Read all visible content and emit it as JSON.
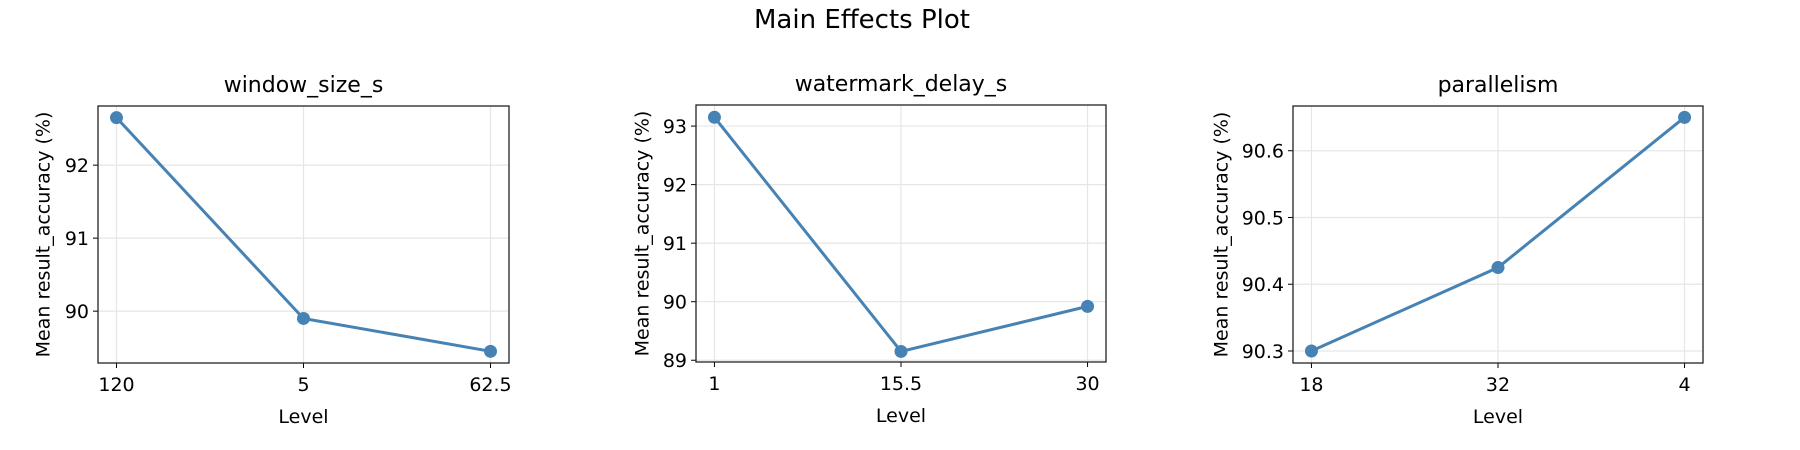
{
  "chart_data": {
    "type": "line",
    "title": "Main Effects Plot",
    "color": "#4682b4",
    "grid": true,
    "panels": [
      {
        "title": "window_size_s",
        "xlabel": "Level",
        "ylabel": "Mean result_accuracy (%)",
        "categories": [
          "120",
          "5",
          "62.5"
        ],
        "values": [
          92.65,
          89.9,
          89.45
        ],
        "ylim": [
          89.29,
          92.81
        ],
        "yticks": [
          90,
          91,
          92
        ],
        "ytick_labels": [
          "90",
          "91",
          "92"
        ]
      },
      {
        "title": "watermark_delay_s",
        "xlabel": "Level",
        "ylabel": "Mean result_accuracy (%)",
        "categories": [
          "1",
          "15.5",
          "30"
        ],
        "values": [
          93.15,
          89.15,
          89.92
        ],
        "ylim": [
          88.97,
          93.36
        ],
        "yticks": [
          89,
          90,
          91,
          92,
          93
        ],
        "ytick_labels": [
          "89",
          "90",
          "91",
          "92",
          "93"
        ]
      },
      {
        "title": "parallelism",
        "xlabel": "Level",
        "ylabel": "Mean result_accuracy (%)",
        "categories": [
          "18",
          "32",
          "4"
        ],
        "values": [
          90.3,
          90.425,
          90.65
        ],
        "ylim": [
          90.282,
          90.667
        ],
        "yticks": [
          90.3,
          90.4,
          90.5,
          90.6
        ],
        "ytick_labels": [
          "90.3",
          "90.4",
          "90.5",
          "90.6"
        ]
      }
    ]
  }
}
